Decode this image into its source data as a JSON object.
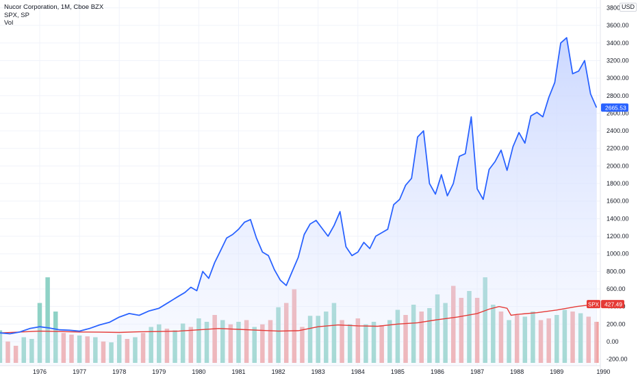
{
  "legend": {
    "main": "Nucor Corporation, 1M, Cboe BZX",
    "compare": "SPX, SP",
    "volume": "Vol"
  },
  "price_axis": {
    "currency_label": "USD",
    "tick_labels": [
      "3800.00",
      "3600.00",
      "3400.00",
      "3200.00",
      "3000.00",
      "2800.00",
      "2600.00",
      "2400.00",
      "2200.00",
      "2000.00",
      "1800.00",
      "1600.00",
      "1400.00",
      "1200.00",
      "1000.00",
      "800.00",
      "600.00",
      "400.00",
      "200.00",
      "0.00",
      "-200.00"
    ],
    "last_price_label": "2665.53",
    "spx_badge_name": "SPX",
    "spx_badge_value": "427.49"
  },
  "time_axis": {
    "year_labels": [
      "1976",
      "1977",
      "1978",
      "1979",
      "1980",
      "1981",
      "1982",
      "1983",
      "1984",
      "1985",
      "1986",
      "1987",
      "1988",
      "1989",
      "1990"
    ]
  },
  "colors": {
    "main_line": "#2962ff",
    "main_fill_top": "#c9d6ff",
    "spx_line": "#e53935",
    "vol_up": "#8fd2c6",
    "vol_down": "#f0a3a3",
    "grid": "#f0f3fa",
    "axis_text": "#131722"
  },
  "chart_data": {
    "type": "line",
    "ylim": [
      -250,
      3900
    ],
    "series": [
      {
        "name": "Nucor Corporation",
        "x": [
          1975.0,
          1975.25,
          1975.5,
          1975.75,
          1976.0,
          1976.25,
          1976.5,
          1976.75,
          1977.0,
          1977.25,
          1977.5,
          1977.75,
          1978.0,
          1978.25,
          1978.5,
          1978.75,
          1979.0,
          1979.25,
          1979.5,
          1979.65,
          1979.8,
          1979.95,
          1980.1,
          1980.25,
          1980.4,
          1980.55,
          1980.7,
          1980.85,
          1981.0,
          1981.15,
          1981.3,
          1981.45,
          1981.6,
          1981.75,
          1981.9,
          1982.05,
          1982.2,
          1982.35,
          1982.5,
          1982.65,
          1982.8,
          1982.95,
          1983.1,
          1983.25,
          1983.4,
          1983.55,
          1983.7,
          1983.85,
          1984.0,
          1984.15,
          1984.3,
          1984.45,
          1984.6,
          1984.75,
          1984.9,
          1985.05,
          1985.2,
          1985.35,
          1985.5,
          1985.65,
          1985.8,
          1985.95,
          1986.1,
          1986.25,
          1986.4,
          1986.55,
          1986.7,
          1986.85,
          1987.0,
          1987.15,
          1987.3,
          1987.45,
          1987.6,
          1987.75,
          1987.9,
          1988.05,
          1988.2,
          1988.35,
          1988.5,
          1988.65,
          1988.8,
          1988.95,
          1989.1,
          1989.25,
          1989.4,
          1989.55,
          1989.7,
          1989.85,
          1990.0
        ],
        "y": [
          100,
          90,
          110,
          150,
          170,
          155,
          135,
          130,
          120,
          150,
          190,
          220,
          280,
          320,
          300,
          350,
          380,
          450,
          520,
          560,
          620,
          580,
          800,
          720,
          900,
          1040,
          1180,
          1220,
          1280,
          1360,
          1390,
          1180,
          1020,
          980,
          820,
          700,
          640,
          800,
          960,
          1220,
          1340,
          1380,
          1290,
          1200,
          1320,
          1480,
          1080,
          980,
          1020,
          1130,
          1060,
          1200,
          1240,
          1280,
          1560,
          1620,
          1780,
          1860,
          2330,
          2400,
          1800,
          1680,
          1900,
          1660,
          1800,
          2110,
          2140,
          2560,
          1740,
          1620,
          1960,
          2050,
          2180,
          1950,
          2220,
          2380,
          2260,
          2570,
          2610,
          2560,
          2780,
          2950,
          3400,
          3460,
          3050,
          3080,
          3200,
          2820,
          2665
        ]
      },
      {
        "name": "SPX",
        "x": [
          1975.0,
          1975.5,
          1976.0,
          1976.5,
          1977.0,
          1977.5,
          1978.0,
          1978.5,
          1979.0,
          1979.5,
          1980.0,
          1980.5,
          1981.0,
          1981.5,
          1982.0,
          1982.5,
          1983.0,
          1983.5,
          1984.0,
          1984.5,
          1985.0,
          1985.5,
          1986.0,
          1986.5,
          1987.0,
          1987.3,
          1987.55,
          1987.75,
          1987.85,
          1988.0,
          1988.5,
          1989.0,
          1989.5,
          1990.0
        ],
        "y": [
          100,
          110,
          120,
          115,
          110,
          108,
          105,
          112,
          115,
          120,
          135,
          150,
          140,
          130,
          120,
          125,
          170,
          190,
          180,
          175,
          200,
          215,
          250,
          280,
          320,
          370,
          400,
          380,
          300,
          310,
          330,
          360,
          400,
          427.49
        ]
      }
    ],
    "volume": {
      "name": "Vol",
      "ylim": [
        0,
        1100
      ],
      "x": [
        1975.0,
        1975.2,
        1975.4,
        1975.6,
        1975.8,
        1976.0,
        1976.2,
        1976.4,
        1976.6,
        1976.8,
        1977.0,
        1977.2,
        1977.4,
        1977.6,
        1977.8,
        1978.0,
        1978.2,
        1978.4,
        1978.6,
        1978.8,
        1979.0,
        1979.2,
        1979.4,
        1979.6,
        1979.8,
        1980.0,
        1980.2,
        1980.4,
        1980.6,
        1980.8,
        1981.0,
        1981.2,
        1981.4,
        1981.6,
        1981.8,
        1982.0,
        1982.2,
        1982.4,
        1982.6,
        1982.8,
        1983.0,
        1983.2,
        1983.4,
        1983.6,
        1983.8,
        1984.0,
        1984.2,
        1984.4,
        1984.6,
        1984.8,
        1985.0,
        1985.2,
        1985.4,
        1985.6,
        1985.8,
        1986.0,
        1986.2,
        1986.4,
        1986.6,
        1986.8,
        1987.0,
        1987.2,
        1987.4,
        1987.6,
        1987.8,
        1988.0,
        1988.2,
        1988.4,
        1988.6,
        1988.8,
        1989.0,
        1989.2,
        1989.4,
        1989.6,
        1989.8,
        1990.0
      ],
      "values": [
        380,
        250,
        200,
        300,
        280,
        700,
        1000,
        600,
        350,
        330,
        320,
        310,
        300,
        250,
        240,
        330,
        280,
        300,
        350,
        420,
        450,
        400,
        380,
        460,
        420,
        520,
        480,
        560,
        500,
        450,
        480,
        500,
        420,
        450,
        500,
        650,
        700,
        860,
        420,
        550,
        550,
        600,
        700,
        500,
        450,
        520,
        450,
        480,
        440,
        500,
        620,
        560,
        680,
        600,
        640,
        800,
        700,
        900,
        760,
        840,
        760,
        1000,
        680,
        600,
        500,
        560,
        540,
        600,
        500,
        520,
        560,
        620,
        600,
        580,
        540,
        480
      ],
      "up": [
        true,
        false,
        false,
        true,
        true,
        true,
        true,
        true,
        false,
        false,
        true,
        false,
        true,
        false,
        true,
        true,
        false,
        true,
        false,
        true,
        true,
        false,
        true,
        true,
        false,
        true,
        true,
        false,
        true,
        false,
        true,
        false,
        true,
        false,
        false,
        true,
        false,
        false,
        false,
        true,
        true,
        true,
        true,
        false,
        true,
        false,
        true,
        true,
        false,
        true,
        true,
        false,
        true,
        false,
        true,
        true,
        true,
        false,
        false,
        true,
        false,
        true,
        true,
        false,
        true,
        false,
        true,
        true,
        false,
        false,
        true,
        true,
        false,
        true,
        false,
        false
      ]
    }
  }
}
